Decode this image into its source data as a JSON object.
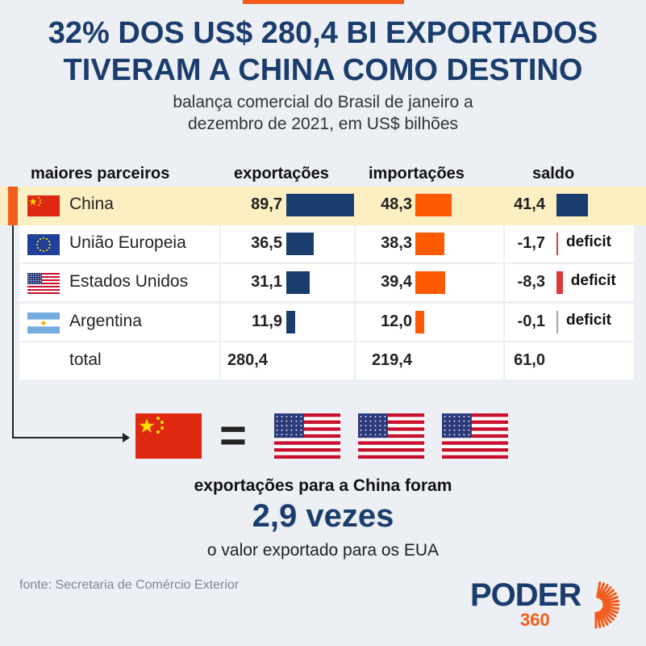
{
  "title_line1": "32% DOS US$ 280,4 BI EXPORTADOS",
  "title_line2": "TIVERAM A CHINA COMO DESTINO",
  "subtitle_line1": "balança comercial do Brasil de janeiro a",
  "subtitle_line2": "dezembro de 2021, em US$ bilhões",
  "colors": {
    "accent": "#f25c1c",
    "navy": "#1a3d6e",
    "export_bar": "#1a3d6e",
    "import_bar": "#ff5a00",
    "deficit_bar": "#d93a3a",
    "highlight": "#fdefc2"
  },
  "chart_data": {
    "type": "table",
    "columns": [
      "maiores parceiros",
      "exportações",
      "importações",
      "saldo"
    ],
    "rows": [
      {
        "partner": "China",
        "flag": "china-flag",
        "exports": 89.7,
        "exports_label": "89,7",
        "imports": 48.3,
        "imports_label": "48,3",
        "balance": 41.4,
        "balance_label": "41,4",
        "deficit": ""
      },
      {
        "partner": "União Europeia",
        "flag": "eu-flag",
        "exports": 36.5,
        "exports_label": "36,5",
        "imports": 38.3,
        "imports_label": "38,3",
        "balance": -1.7,
        "balance_label": "-1,7",
        "deficit": "deficit"
      },
      {
        "partner": "Estados Unidos",
        "flag": "usa-flag",
        "exports": 31.1,
        "exports_label": "31,1",
        "imports": 39.4,
        "imports_label": "39,4",
        "balance": -8.3,
        "balance_label": "-8,3",
        "deficit": "deficit"
      },
      {
        "partner": "Argentina",
        "flag": "argentina-flag",
        "exports": 11.9,
        "exports_label": "11,9",
        "imports": 12.0,
        "imports_label": "12,0",
        "balance": -0.1,
        "balance_label": "-0,1",
        "deficit": "deficit"
      }
    ],
    "total": {
      "label": "total",
      "exports_label": "280,4",
      "imports_label": "219,4",
      "balance_label": "61,0"
    }
  },
  "comparison": {
    "line1": "exportações para a China foram",
    "line2": "2,9 vezes",
    "line3": "o valor exportado para os EUA",
    "icons": [
      "china-flag",
      "usa-flag",
      "usa-flag",
      "usa-flag"
    ]
  },
  "source": "fonte: Secretaria de Comércio Exterior",
  "logo": {
    "text": "PODER",
    "number": "360"
  }
}
